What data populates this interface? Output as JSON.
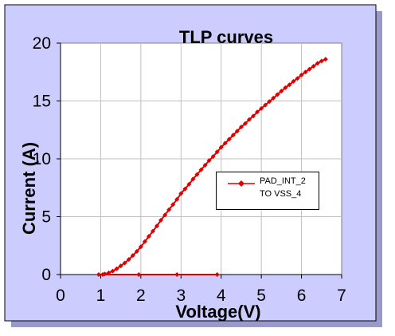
{
  "chart_data": {
    "type": "line",
    "title": "TLP curves",
    "xlabel": "Voltage(V)",
    "ylabel": "Current (A)",
    "xlim": [
      0,
      7
    ],
    "ylim": [
      0,
      20
    ],
    "xticks": [
      "0",
      "1",
      "2",
      "3",
      "4",
      "5",
      "6",
      "7"
    ],
    "yticks": [
      "0",
      "5",
      "10",
      "15",
      "20"
    ],
    "grid": true,
    "legend_position": "right",
    "series": [
      {
        "name": "PAD_INT_2 TO VSS_4",
        "color": "#e00000",
        "marker": "diamond",
        "x": [
          3.9,
          2.9,
          1.95,
          0.95,
          1.05,
          1.1,
          1.2,
          1.3,
          1.4,
          1.5,
          1.6,
          1.7,
          1.8,
          1.9,
          2.0,
          2.1,
          2.2,
          2.3,
          2.4,
          2.5,
          2.6,
          2.7,
          2.8,
          2.9,
          3.0,
          3.1,
          3.2,
          3.3,
          3.4,
          3.5,
          3.6,
          3.7,
          3.8,
          3.9,
          4.0,
          4.1,
          4.2,
          4.3,
          4.4,
          4.5,
          4.6,
          4.7,
          4.8,
          4.9,
          5.0,
          5.1,
          5.2,
          5.3,
          5.4,
          5.5,
          5.6,
          5.7,
          5.8,
          5.9,
          6.0,
          6.1,
          6.2,
          6.3,
          6.4,
          6.5,
          6.6
        ],
        "y": [
          0,
          0,
          0,
          0,
          0,
          0.05,
          0.15,
          0.3,
          0.5,
          0.75,
          1.0,
          1.3,
          1.65,
          2.0,
          2.4,
          2.85,
          3.3,
          3.75,
          4.2,
          4.7,
          5.15,
          5.6,
          6.05,
          6.5,
          7.0,
          7.4,
          7.8,
          8.25,
          8.65,
          9.05,
          9.45,
          9.85,
          10.2,
          10.6,
          11.0,
          11.35,
          11.7,
          12.05,
          12.4,
          12.75,
          13.05,
          13.4,
          13.7,
          14.05,
          14.35,
          14.65,
          14.95,
          15.25,
          15.55,
          15.85,
          16.15,
          16.4,
          16.7,
          16.95,
          17.25,
          17.5,
          17.75,
          18.0,
          18.25,
          18.45,
          18.6
        ]
      }
    ],
    "legend_lines": [
      "PAD_INT_2",
      "TO VSS_4"
    ]
  },
  "colors": {
    "frame_bg": "#ccccff",
    "plot_bg": "#ffffff",
    "grid": "#c0c0c0",
    "series": "#e00000"
  }
}
